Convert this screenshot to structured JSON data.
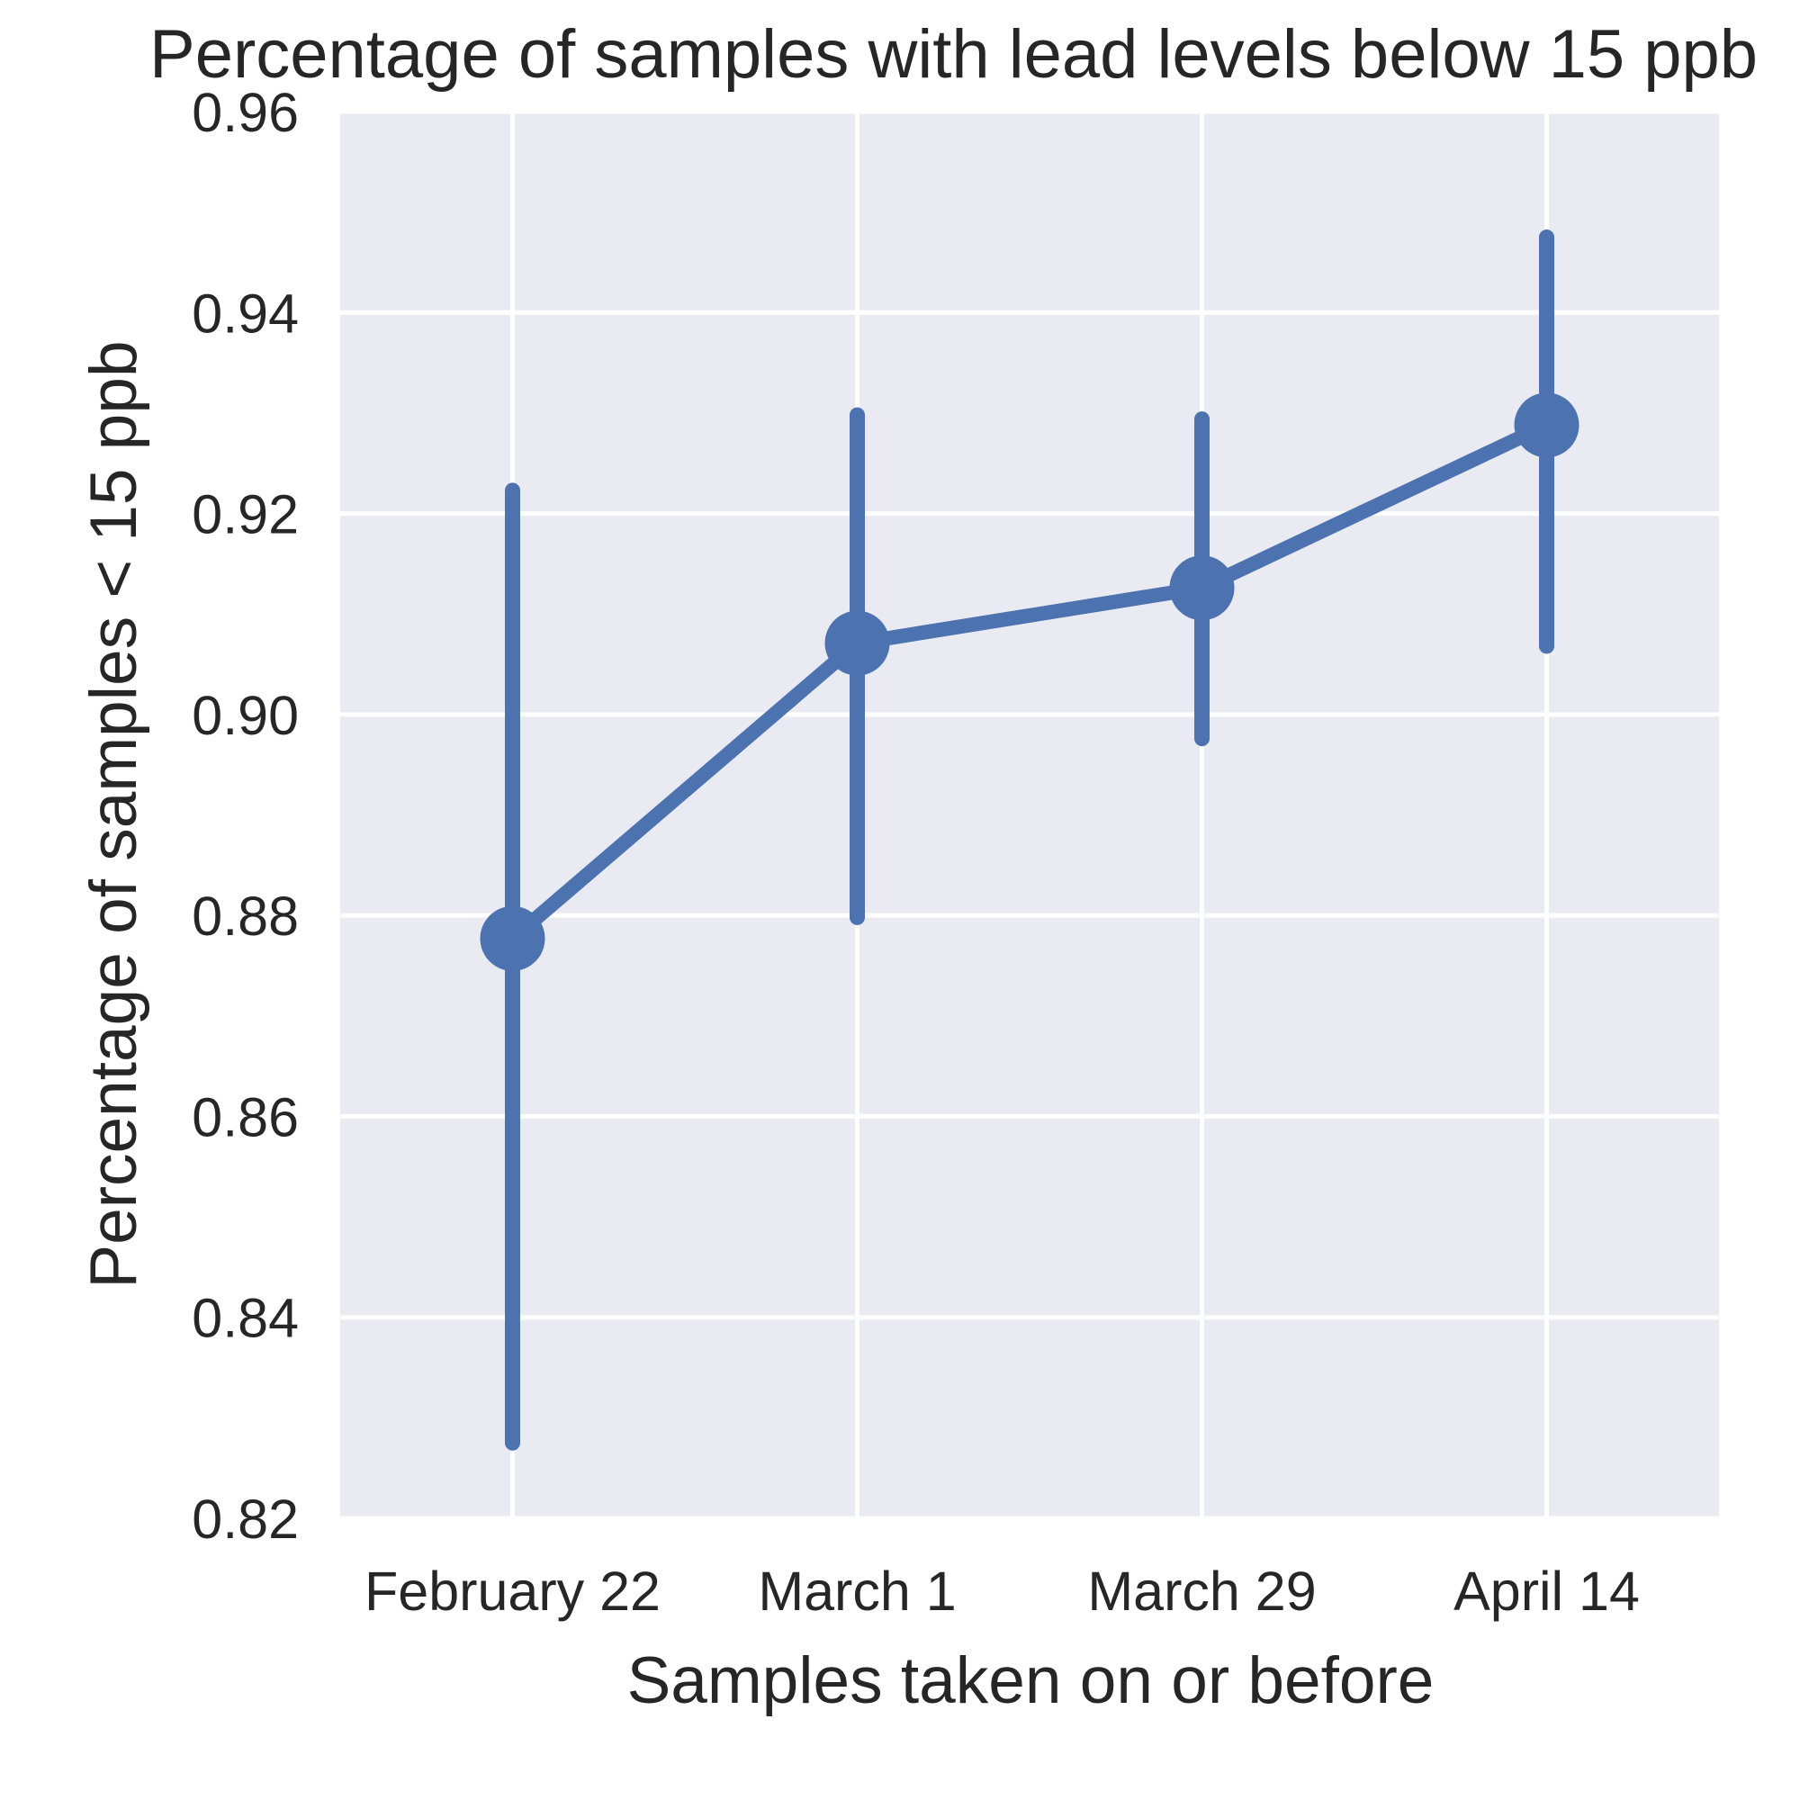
{
  "colors": {
    "background": "#ffffff",
    "plot_background": "#eaeaf2",
    "grid": "#ffffff",
    "series": "#4c72b0",
    "text": "#262626"
  },
  "chart_data": {
    "type": "line",
    "title": "Percentage of samples with lead levels below 15 ppb",
    "xlabel": "Samples taken on or before",
    "ylabel": "Percentage of samples < 15 ppb",
    "categories": [
      "February 22",
      "March 1",
      "March 29",
      "April 14"
    ],
    "ylim": [
      0.82,
      0.96
    ],
    "yticks": [
      0.82,
      0.84,
      0.86,
      0.88,
      0.9,
      0.92,
      0.94,
      0.96
    ],
    "ytick_labels": [
      "0.82",
      "0.84",
      "0.86",
      "0.88",
      "0.90",
      "0.92",
      "0.94",
      "0.96"
    ],
    "grid": true,
    "series": [
      {
        "name": "Percentage of samples < 15 ppb",
        "values": [
          0.8777,
          0.9071,
          0.9126,
          0.9288
        ],
        "ci_low": [
          0.8275,
          0.8798,
          0.8976,
          0.9068
        ],
        "ci_high": [
          0.9223,
          0.9298,
          0.9294,
          0.9475
        ]
      }
    ]
  }
}
